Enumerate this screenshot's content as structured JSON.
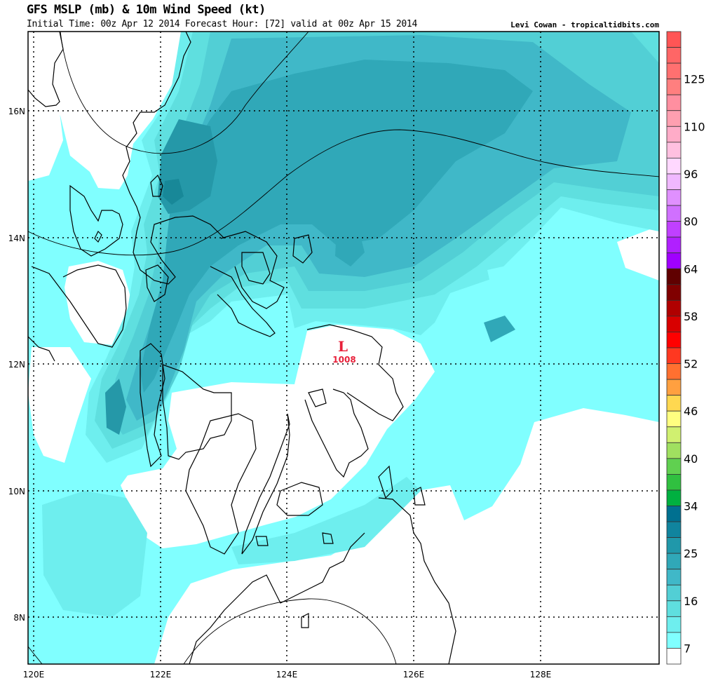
{
  "header": {
    "title": "GFS MSLP (mb) & 10m Wind Speed (kt)",
    "subtitle": "Initial Time: 00z Apr 12 2014 Forecast Hour: [72] valid at 00z Apr 15 2014",
    "credit": "Levi Cowan - tropicaltidbits.com"
  },
  "map": {
    "lon_range": [
      120,
      129.9
    ],
    "lat_range": [
      7.3,
      17.3
    ],
    "lon_ticks": [
      "120E",
      "122E",
      "124E",
      "126E",
      "128E"
    ],
    "lat_ticks": [
      "16N",
      "14N",
      "12N",
      "10N",
      "8N"
    ],
    "low": {
      "symbol": "L",
      "pressure": "1008",
      "color": "#e8203a"
    }
  },
  "colorbar": {
    "labels": [
      "125",
      "110",
      "96",
      "80",
      "64",
      "58",
      "52",
      "46",
      "40",
      "34",
      "25",
      "16",
      "7"
    ],
    "colors_top_to_bottom": [
      "#ff5555",
      "#ff6666",
      "#ff7070",
      "#ff7f7f",
      "#ff8fa0",
      "#ff9fb0",
      "#ffacc8",
      "#ffc0e0",
      "#ffd8ff",
      "#f0b8ff",
      "#e090ff",
      "#d070ff",
      "#c040ff",
      "#b020ff",
      "#a000ff",
      "#600000",
      "#800000",
      "#b00000",
      "#d80000",
      "#ff0000",
      "#ff3820",
      "#ff7030",
      "#ffa040",
      "#ffd850",
      "#ffff80",
      "#d0f070",
      "#a0e060",
      "#60d050",
      "#30c040",
      "#00b040",
      "#007090",
      "#10849e",
      "#2098aa",
      "#30a8b8",
      "#40b8c8",
      "#52cfd5",
      "#5fdfdf",
      "#6eeeee",
      "#80ffff",
      "#ffffff"
    ]
  }
}
